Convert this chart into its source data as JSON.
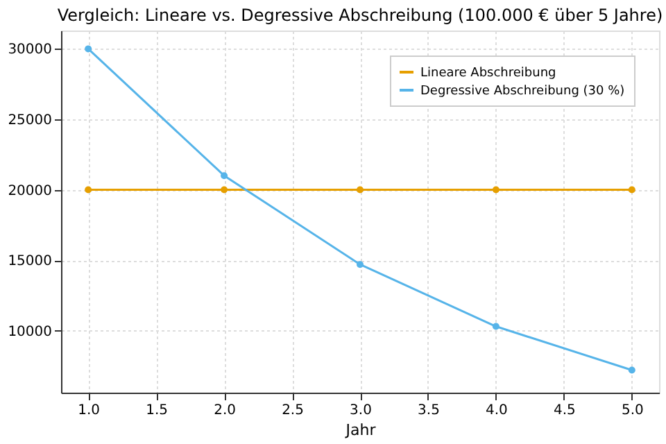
{
  "chart_data": {
    "type": "line",
    "title": "Vergleich: Lineare vs. Degressive Abschreibung (100.000 € über 5 Jahre)",
    "xlabel": "Jahr",
    "x": [
      1,
      2,
      3,
      4,
      5
    ],
    "series": [
      {
        "name": "Lineare Abschreibung",
        "color": "#e69f00",
        "values": [
          20000,
          20000,
          20000,
          20000,
          20000
        ]
      },
      {
        "name": "Degressive Abschreibung (30 %)",
        "color": "#56b4e9",
        "values": [
          30000,
          21000,
          14700,
          10300,
          7200
        ]
      }
    ],
    "xlim": [
      0.8,
      5.2
    ],
    "ylim": [
      5600,
      31300
    ],
    "xticks": [
      {
        "value": 1,
        "label": "1.0"
      },
      {
        "value": 1.5,
        "label": "1.5"
      },
      {
        "value": 2,
        "label": "2.0"
      },
      {
        "value": 2.5,
        "label": "2.5"
      },
      {
        "value": 3,
        "label": "3.0"
      },
      {
        "value": 3.5,
        "label": "3.5"
      },
      {
        "value": 4,
        "label": "4.0"
      },
      {
        "value": 4.5,
        "label": "4.5"
      },
      {
        "value": 5,
        "label": "5.0"
      }
    ],
    "yticks": [
      10000,
      15000,
      20000,
      25000,
      30000
    ],
    "grid": true,
    "legend": "top right",
    "marker": "circle",
    "line_style": "solid"
  }
}
